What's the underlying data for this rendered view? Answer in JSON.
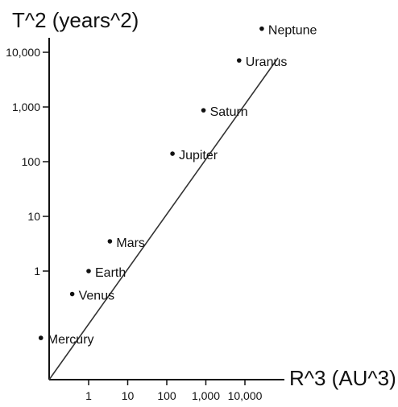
{
  "chart_data": {
    "type": "scatter",
    "xlabel": "R^3 (AU^3)",
    "ylabel": "T^2 (years^2)",
    "x_scale": "log",
    "y_scale": "log",
    "xlim": [
      0.02,
      50000
    ],
    "ylim": [
      0.005,
      30000
    ],
    "x_ticks": [
      {
        "value": 1,
        "label": "1"
      },
      {
        "value": 10,
        "label": "10"
      },
      {
        "value": 100,
        "label": "100"
      },
      {
        "value": 1000,
        "label": "1,000"
      },
      {
        "value": 10000,
        "label": "10,000"
      }
    ],
    "y_ticks": [
      {
        "value": 1,
        "label": "1"
      },
      {
        "value": 10,
        "label": "10"
      },
      {
        "value": 100,
        "label": "100"
      },
      {
        "value": 1000,
        "label": "1,000"
      },
      {
        "value": 10000,
        "label": "10,000"
      }
    ],
    "points": [
      {
        "label": "Mercury",
        "x": 0.06,
        "y": 0.06
      },
      {
        "label": "Venus",
        "x": 0.38,
        "y": 0.38
      },
      {
        "label": "Earth",
        "x": 1,
        "y": 1
      },
      {
        "label": "Mars",
        "x": 3.5,
        "y": 3.5
      },
      {
        "label": "Jupiter",
        "x": 140,
        "y": 140
      },
      {
        "label": "Saturn",
        "x": 870,
        "y": 870
      },
      {
        "label": "Uranus",
        "x": 7100,
        "y": 7100
      },
      {
        "label": "Neptune",
        "x": 27000,
        "y": 27000
      }
    ],
    "fit_line": true,
    "grid": false,
    "colors": {
      "axis": "#111111",
      "fit_line": "#333333",
      "points": "#111111",
      "text": "#111111"
    }
  }
}
